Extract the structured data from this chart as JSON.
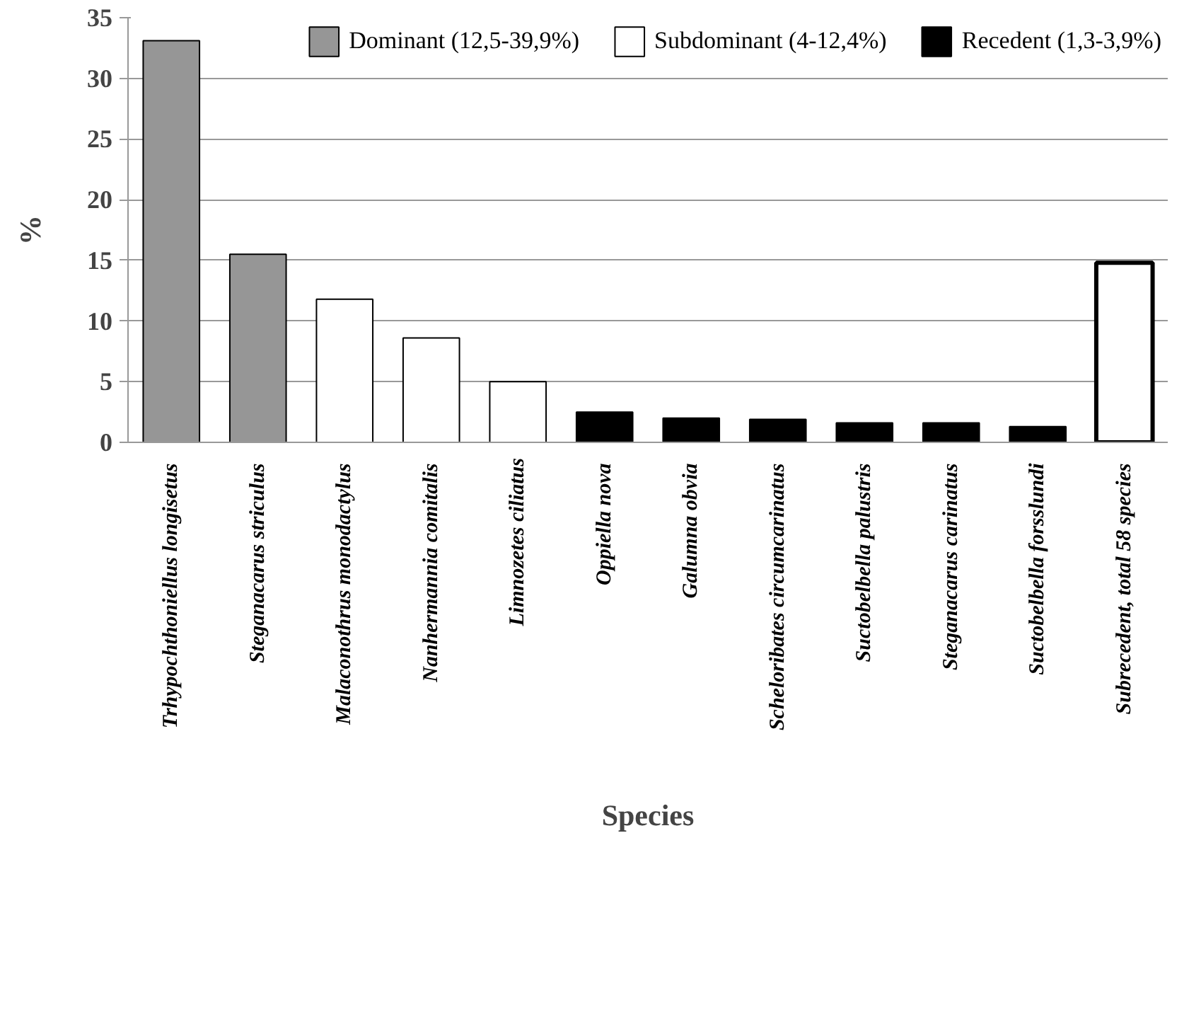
{
  "chart_data": {
    "type": "bar",
    "xlabel": "Species",
    "ylabel": "%",
    "categories": [
      "Trhypochthoniellus  longisetus",
      "Steganacarus  striculus",
      "Malaconothrus  monodactylus",
      "Nanhermannia  comitalis",
      "Limnozetes ciliatus",
      "Oppiella  nova",
      "Galumna  obvia",
      "Scheloribates  circumcarinatus",
      "Suctobelbella  palustris",
      "Steganacarus  carinatus",
      "Suctobelbella  forsslundi",
      "Subrecedent, total  58 species"
    ],
    "series": [
      {
        "name": "Dominant (12,5-39,9%)",
        "color": "#969696",
        "values": [
          33.1,
          15.5,
          null,
          null,
          null,
          null,
          null,
          null,
          null,
          null,
          null,
          null
        ]
      },
      {
        "name": "Subdominant (4-12,4%)",
        "color": "#ffffff",
        "values": [
          null,
          null,
          11.8,
          8.6,
          5.0,
          null,
          null,
          null,
          null,
          null,
          null,
          null
        ]
      },
      {
        "name": "Recedent (1,3-3,9%)",
        "color": "#000000",
        "values": [
          null,
          null,
          null,
          null,
          null,
          2.5,
          2.0,
          1.9,
          1.6,
          1.6,
          1.3,
          null
        ]
      },
      {
        "color": "#ffffff",
        "values": [
          null,
          null,
          null,
          null,
          null,
          null,
          null,
          null,
          null,
          null,
          null,
          14.8
        ]
      }
    ],
    "ylim": [
      0,
      35
    ],
    "yticks": [
      0,
      5,
      10,
      15,
      20,
      25,
      30,
      35
    ],
    "grid": "y",
    "legend": "top"
  }
}
